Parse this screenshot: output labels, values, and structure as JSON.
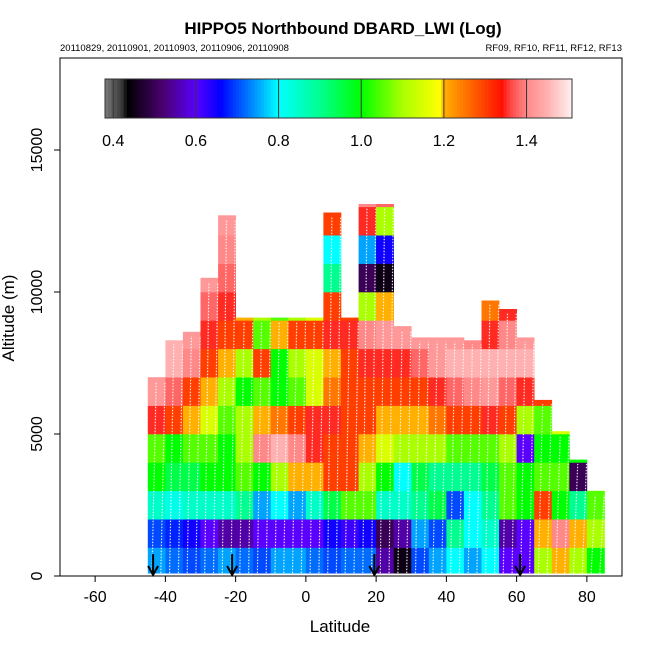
{
  "chart_data": {
    "type": "heatmap",
    "title": "HIPPO5 Northbound DBARD_LWI (Log)",
    "subtitle_left": "20110829, 20110901, 20110903, 20110906, 20110908",
    "subtitle_right": "RF09, RF10, RF11, RF12, RF13",
    "xlabel": "Latitude",
    "ylabel": "Altitude (m)",
    "xlim": [
      -70,
      90
    ],
    "ylim": [
      0,
      18240
    ],
    "xticks": [
      -60,
      -40,
      -20,
      0,
      20,
      40,
      60,
      80
    ],
    "xtick_labels": [
      "-60",
      "-40",
      "-20",
      "0",
      "20",
      "40",
      "60",
      "80"
    ],
    "yticks": [
      0,
      5000,
      10000,
      15000
    ],
    "ytick_labels": [
      "0",
      "5000",
      "10000",
      "15000"
    ],
    "colorbar": {
      "range": [
        0.38,
        1.51
      ],
      "ticks": [
        0.4,
        0.6,
        0.8,
        1.0,
        1.2,
        1.4
      ],
      "tick_labels": [
        "0.4",
        "0.6",
        "0.8",
        "1.0",
        "1.2",
        "1.4"
      ],
      "placement": "top-inside"
    },
    "lat_bin_width": 5,
    "alt_bin_height": 1000,
    "columns": [
      {
        "lat": -45,
        "top": 7000,
        "values": [
          0.75,
          0.7,
          0.85,
          1.0,
          1.05,
          1.35,
          1.42
        ]
      },
      {
        "lat": -40,
        "top": 8300,
        "values": [
          0.72,
          0.68,
          0.82,
          0.95,
          1.0,
          1.3,
          1.38,
          1.45,
          1.45
        ]
      },
      {
        "lat": -35,
        "top": 8600,
        "values": [
          0.7,
          0.65,
          0.85,
          0.95,
          1.05,
          1.2,
          1.3,
          1.4,
          1.42
        ]
      },
      {
        "lat": -30,
        "top": 10500,
        "values": [
          0.72,
          0.6,
          0.85,
          1.0,
          1.05,
          1.15,
          1.2,
          1.3,
          1.35,
          1.38,
          1.42
        ]
      },
      {
        "lat": -25,
        "top": 12700,
        "values": [
          0.75,
          0.55,
          0.85,
          1.0,
          1.0,
          1.05,
          1.1,
          1.2,
          1.3,
          1.35,
          1.38,
          1.4,
          1.42
        ]
      },
      {
        "lat": -20,
        "top": 9100,
        "values": [
          0.72,
          0.55,
          0.9,
          1.05,
          1.1,
          1.1,
          1.0,
          1.1,
          1.3,
          1.2
        ]
      },
      {
        "lat": -15,
        "top": 9100,
        "values": [
          0.7,
          0.6,
          0.75,
          1.0,
          1.4,
          1.2,
          1.05,
          1.3,
          1.05,
          1.1
        ]
      },
      {
        "lat": -10,
        "top": 9100,
        "values": [
          0.75,
          0.6,
          0.8,
          1.1,
          1.45,
          1.25,
          1.0,
          1.0,
          1.2,
          1.05
        ]
      },
      {
        "lat": -5,
        "top": 9100,
        "values": [
          0.75,
          0.6,
          0.75,
          1.2,
          1.4,
          1.3,
          1.05,
          1.1,
          1.3,
          1.1
        ]
      },
      {
        "lat": 0,
        "top": 9100,
        "values": [
          0.72,
          0.6,
          0.85,
          1.2,
          1.35,
          1.35,
          1.15,
          1.15,
          1.3,
          1.15
        ]
      },
      {
        "lat": 5,
        "top": 12800,
        "values": [
          0.7,
          0.65,
          0.95,
          1.3,
          1.3,
          1.35,
          1.25,
          1.2,
          1.35,
          1.3,
          0.9,
          0.8,
          1.3
        ]
      },
      {
        "lat": 10,
        "top": 9100,
        "values": [
          0.72,
          0.62,
          1.05,
          1.3,
          1.3,
          1.3,
          1.3,
          1.3,
          1.35,
          1.3
        ]
      },
      {
        "lat": 15,
        "top": 13100,
        "values": [
          0.72,
          0.65,
          1.05,
          1.1,
          1.2,
          1.3,
          1.3,
          1.35,
          1.4,
          1.1,
          0.5,
          0.75,
          1.35,
          1.4
        ]
      },
      {
        "lat": 20,
        "top": 13100,
        "values": [
          0.55,
          0.5,
          0.85,
          1.0,
          1.15,
          1.2,
          1.3,
          1.35,
          1.42,
          1.2,
          0.45,
          0.65,
          1.1,
          1.38
        ]
      },
      {
        "lat": 25,
        "top": 8800,
        "values": [
          0.45,
          0.55,
          0.85,
          0.8,
          1.1,
          1.2,
          1.3,
          1.35,
          1.42
        ]
      },
      {
        "lat": 30,
        "top": 8400,
        "values": [
          0.7,
          0.75,
          0.9,
          0.95,
          1.1,
          1.2,
          1.3,
          1.38,
          1.42
        ]
      },
      {
        "lat": 35,
        "top": 8400,
        "values": [
          0.75,
          0.7,
          0.95,
          0.9,
          1.1,
          1.25,
          1.35,
          1.42,
          1.42
        ]
      },
      {
        "lat": 40,
        "top": 8400,
        "values": [
          0.8,
          0.9,
          0.7,
          0.9,
          1.05,
          1.3,
          1.38,
          1.45,
          1.42
        ]
      },
      {
        "lat": 45,
        "top": 8300,
        "values": [
          0.75,
          0.8,
          0.8,
          0.9,
          1.05,
          1.3,
          1.4,
          1.45,
          1.4
        ]
      },
      {
        "lat": 50,
        "top": 9700,
        "values": [
          0.8,
          0.85,
          0.9,
          0.95,
          1.05,
          1.35,
          1.42,
          1.45,
          1.35,
          1.25
        ]
      },
      {
        "lat": 55,
        "top": 9400,
        "values": [
          0.6,
          0.55,
          1.05,
          1.05,
          1.1,
          1.3,
          1.38,
          1.45,
          1.4,
          1.35
        ]
      },
      {
        "lat": 60,
        "top": 8400,
        "values": [
          0.6,
          0.6,
          1.0,
          1.0,
          0.6,
          1.1,
          1.35,
          1.45,
          1.42
        ]
      },
      {
        "lat": 65,
        "top": 6200,
        "values": [
          1.1,
          1.2,
          1.3,
          1.05,
          1.0,
          1.05,
          1.3
        ]
      },
      {
        "lat": 70,
        "top": 5100,
        "values": [
          1.2,
          1.4,
          1.0,
          1.05,
          1.0,
          1.15
        ]
      },
      {
        "lat": 75,
        "top": 4100,
        "values": [
          1.1,
          1.2,
          0.9,
          0.5,
          1.0
        ]
      },
      {
        "lat": 80,
        "top": 3000,
        "values": [
          1.0,
          1.1,
          1.05
        ]
      }
    ],
    "flight_markers_lat": [
      -43.5,
      -21,
      19.5,
      61
    ],
    "colors": {
      "stops": [
        [
          0.38,
          "#7a7a7a"
        ],
        [
          0.42,
          "#3a3a3a"
        ],
        [
          0.435,
          "#000000"
        ],
        [
          0.52,
          "#4a0070"
        ],
        [
          0.6,
          "#5a00ff"
        ],
        [
          0.66,
          "#0000ff"
        ],
        [
          0.8,
          "#00ffff"
        ],
        [
          0.9,
          "#00ff90"
        ],
        [
          1.0,
          "#00ff00"
        ],
        [
          1.1,
          "#aaff00"
        ],
        [
          1.19,
          "#ffff00"
        ],
        [
          1.2,
          "#ffb000"
        ],
        [
          1.34,
          "#ff1000"
        ],
        [
          1.36,
          "#ff4444"
        ],
        [
          1.4,
          "#ff8888"
        ],
        [
          1.45,
          "#ffb0b0"
        ],
        [
          1.51,
          "#fff0f0"
        ]
      ]
    }
  }
}
